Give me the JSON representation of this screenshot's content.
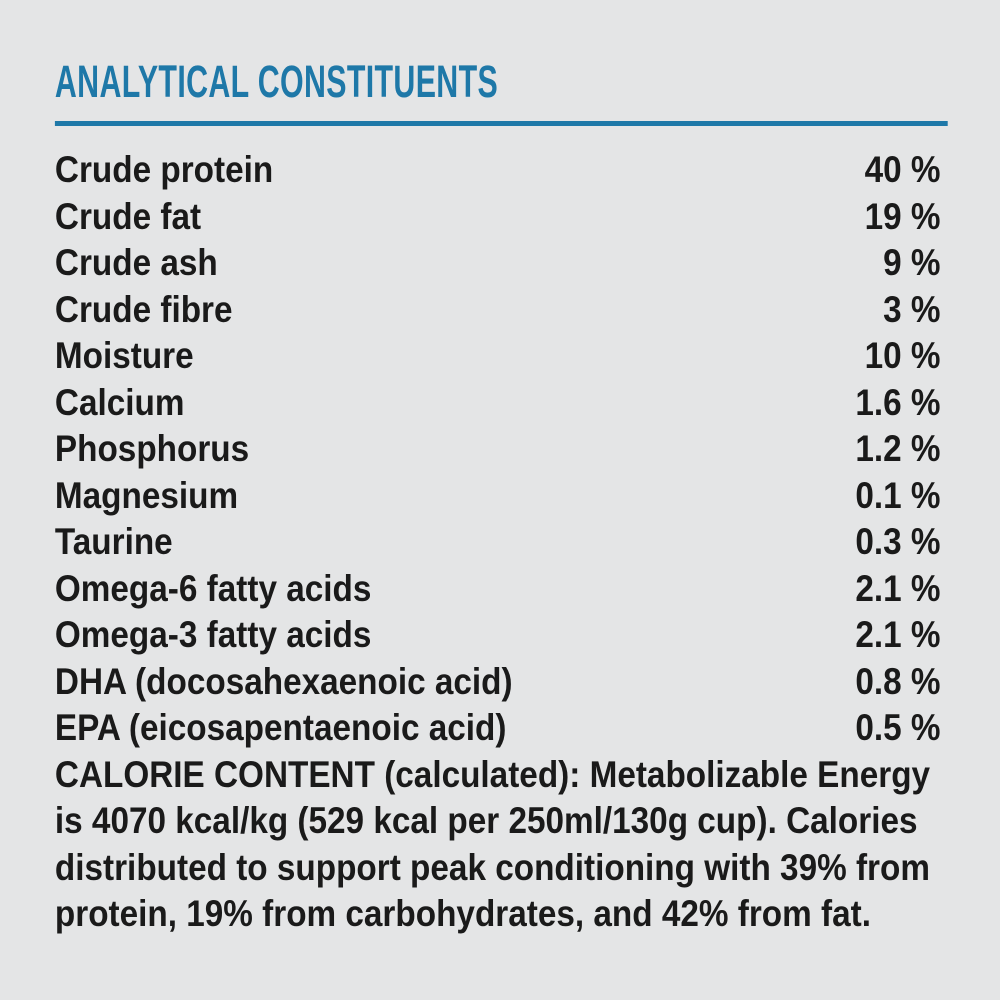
{
  "colors": {
    "background": "#e4e5e6",
    "accent_blue": "#1e78a8",
    "text": "#1a1a1a"
  },
  "section": {
    "title": "ANALYTICAL CONSTITUENTS",
    "rows": [
      {
        "label": "Crude protein",
        "value": "40 %"
      },
      {
        "label": "Crude fat",
        "value": "19 %"
      },
      {
        "label": "Crude ash",
        "value": "9 %"
      },
      {
        "label": "Crude fibre",
        "value": "3 %"
      },
      {
        "label": "Moisture",
        "value": "10 %"
      },
      {
        "label": "Calcium",
        "value": "1.6 %"
      },
      {
        "label": "Phosphorus",
        "value": "1.2 %"
      },
      {
        "label": "Magnesium",
        "value": "0.1 %"
      },
      {
        "label": "Taurine",
        "value": "0.3 %"
      },
      {
        "label": "Omega-6 fatty acids",
        "value": "2.1 %"
      },
      {
        "label": "Omega-3 fatty acids",
        "value": "2.1 %"
      },
      {
        "label": "DHA (docosahexaenoic acid)",
        "value": "0.8 %"
      },
      {
        "label": "EPA (eicosapentaenoic acid)",
        "value": "0.5 %"
      }
    ],
    "calorie_lines": [
      "CALORIE CONTENT (calculated): Metabolizable Energy",
      "is 4070 kcal/kg (529 kcal per 250ml/130g cup). Calories",
      "distributed to support peak conditioning with 39% from",
      "protein, 19% from carbohydrates, and 42% from fat."
    ]
  }
}
